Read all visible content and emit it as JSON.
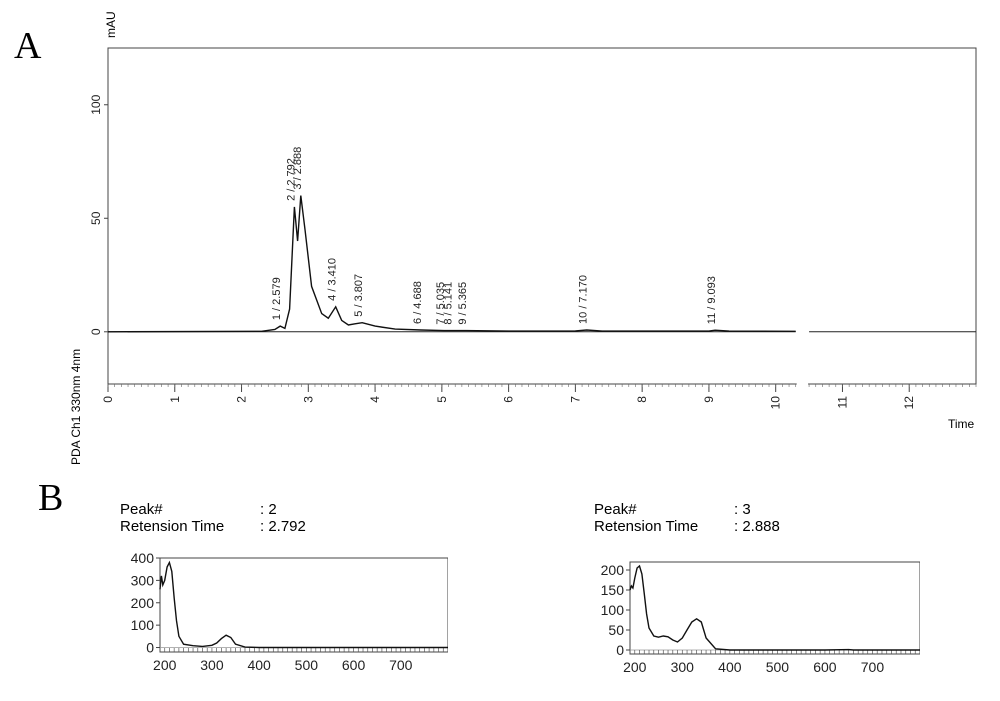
{
  "panels": {
    "a": "A",
    "b": "B"
  },
  "chromatogram": {
    "y_unit_label": "mAU",
    "y_axis_label": "PDA Ch1 330nm 4nm",
    "x_axis_label": "Time"
  },
  "spectra": [
    {
      "peak_key": "Peak#",
      "peak_value": ": 2",
      "rt_key": "Retension Time",
      "rt_value": ": 2.792"
    },
    {
      "peak_key": "Peak#",
      "peak_value": ": 3",
      "rt_key": "Retension Time",
      "rt_value": ": 2.888"
    }
  ],
  "chart_data": [
    {
      "type": "line",
      "xlim": [
        0,
        13
      ],
      "ylim": [
        -23,
        125
      ],
      "x_ticks": [
        0,
        1,
        2,
        3,
        4,
        5,
        6,
        7,
        8,
        9,
        10,
        11,
        12
      ],
      "y_ticks": [
        0,
        50,
        100
      ],
      "axis_break": [
        10.3,
        10.5
      ],
      "x": [
        0,
        2.3,
        2.5,
        2.579,
        2.65,
        2.72,
        2.792,
        2.84,
        2.888,
        2.95,
        3.05,
        3.2,
        3.3,
        3.41,
        3.5,
        3.6,
        3.7,
        3.807,
        4.0,
        4.3,
        4.688,
        5.035,
        5.141,
        5.365,
        6.0,
        7.0,
        7.17,
        7.4,
        9.0,
        9.093,
        9.3,
        10.3
      ],
      "y": [
        0,
        0.2,
        1.0,
        2.5,
        1.5,
        10,
        55,
        40,
        60,
        45,
        20,
        8,
        6,
        11,
        5,
        3,
        3.5,
        4,
        2.5,
        1.2,
        0.8,
        0.5,
        0.5,
        0.5,
        0.3,
        0.4,
        0.8,
        0.3,
        0.3,
        0.7,
        0.3,
        0.2
      ],
      "peaks": [
        {
          "label": "1 / 2.579",
          "x": 2.579,
          "y": 2.5
        },
        {
          "label": "2 / 2.792",
          "x": 2.792,
          "y": 55
        },
        {
          "label": "3 / 2.888",
          "x": 2.888,
          "y": 60
        },
        {
          "label": "4 / 3.410",
          "x": 3.41,
          "y": 11
        },
        {
          "label": "5 / 3.807",
          "x": 3.807,
          "y": 4
        },
        {
          "label": "6 / 4.688",
          "x": 4.688,
          "y": 0.8
        },
        {
          "label": "7 / 5.035",
          "x": 5.035,
          "y": 0.5
        },
        {
          "label": "8 / 5.141",
          "x": 5.141,
          "y": 0.5
        },
        {
          "label": "9 / 5.365",
          "x": 5.365,
          "y": 0.5
        },
        {
          "label": "10 / 7.170",
          "x": 7.17,
          "y": 0.8
        },
        {
          "label": "11 / 9.093",
          "x": 9.093,
          "y": 0.7
        }
      ]
    },
    {
      "type": "line",
      "title": "Peak# 2",
      "xlim": [
        190,
        800
      ],
      "ylim": [
        -20,
        400
      ],
      "x_ticks": [
        200,
        300,
        400,
        500,
        600,
        700
      ],
      "y_ticks": [
        0,
        100,
        200,
        300,
        400
      ],
      "x": [
        190,
        193,
        196,
        200,
        205,
        210,
        215,
        220,
        225,
        230,
        240,
        260,
        280,
        300,
        310,
        320,
        330,
        340,
        350,
        370,
        400,
        500,
        600,
        700,
        800
      ],
      "y": [
        260,
        320,
        280,
        300,
        360,
        380,
        340,
        220,
        120,
        50,
        15,
        8,
        5,
        10,
        20,
        40,
        55,
        45,
        15,
        2,
        0,
        0,
        0,
        0,
        0
      ]
    },
    {
      "type": "line",
      "title": "Peak# 3",
      "xlim": [
        190,
        800
      ],
      "ylim": [
        -10,
        220
      ],
      "x_ticks": [
        200,
        300,
        400,
        500,
        600,
        700
      ],
      "y_ticks": [
        0,
        50,
        100,
        150,
        200
      ],
      "x": [
        190,
        193,
        196,
        200,
        205,
        210,
        215,
        220,
        225,
        230,
        240,
        250,
        260,
        270,
        280,
        290,
        300,
        310,
        320,
        330,
        340,
        350,
        370,
        400,
        500,
        600,
        650,
        660,
        700,
        800
      ],
      "y": [
        150,
        160,
        155,
        180,
        205,
        210,
        190,
        140,
        90,
        55,
        35,
        32,
        35,
        33,
        25,
        20,
        30,
        50,
        70,
        78,
        70,
        30,
        3,
        0,
        0,
        0,
        1,
        0,
        0,
        0
      ]
    }
  ]
}
